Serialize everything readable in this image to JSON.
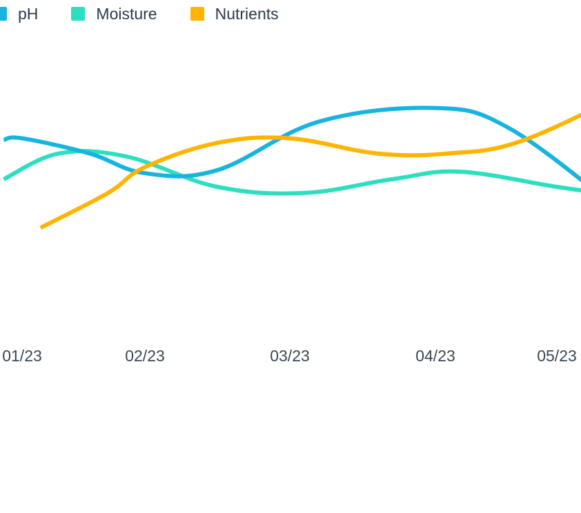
{
  "chart_data": {
    "type": "line",
    "title": "",
    "xlabel": "",
    "ylabel": "",
    "x_tick_labels": [
      "01/23",
      "02/23",
      "03/23",
      "04/23",
      "05/23"
    ],
    "x": [
      0.0,
      0.55,
      1.0,
      1.6,
      2.3,
      3.05,
      3.7,
      4.4
    ],
    "legend_position": "top-left",
    "grid": false,
    "series": [
      {
        "name": "pH",
        "color": "#18b4de",
        "x": [
          -0.15,
          0.0,
          0.55,
          1.0,
          1.5,
          2.2,
          3.0,
          3.6,
          4.45
        ],
        "values": [
          6.3,
          6.35,
          5.85,
          5.2,
          5.3,
          6.9,
          7.35,
          6.7,
          4.2
        ]
      },
      {
        "name": "Moisture",
        "color": "#2ddfbf",
        "x": [
          -0.15,
          0.3,
          0.85,
          1.5,
          2.1,
          2.7,
          3.2,
          4.0,
          4.45
        ],
        "values": [
          5.0,
          5.85,
          5.75,
          4.75,
          4.55,
          5.0,
          5.25,
          4.75,
          4.5
        ]
      },
      {
        "name": "Nutrients",
        "color": "#ffb400",
        "x": [
          0.15,
          0.7,
          1.0,
          1.5,
          2.0,
          2.6,
          3.1,
          3.7,
          4.6
        ],
        "values": [
          3.4,
          4.55,
          5.4,
          6.2,
          6.35,
          5.85,
          5.85,
          6.25,
          7.9
        ]
      }
    ]
  },
  "legend": [
    {
      "label": "pH",
      "color": "#18b4de"
    },
    {
      "label": "Moisture",
      "color": "#2ddfbf"
    },
    {
      "label": "Nutrients",
      "color": "#ffb400"
    }
  ]
}
